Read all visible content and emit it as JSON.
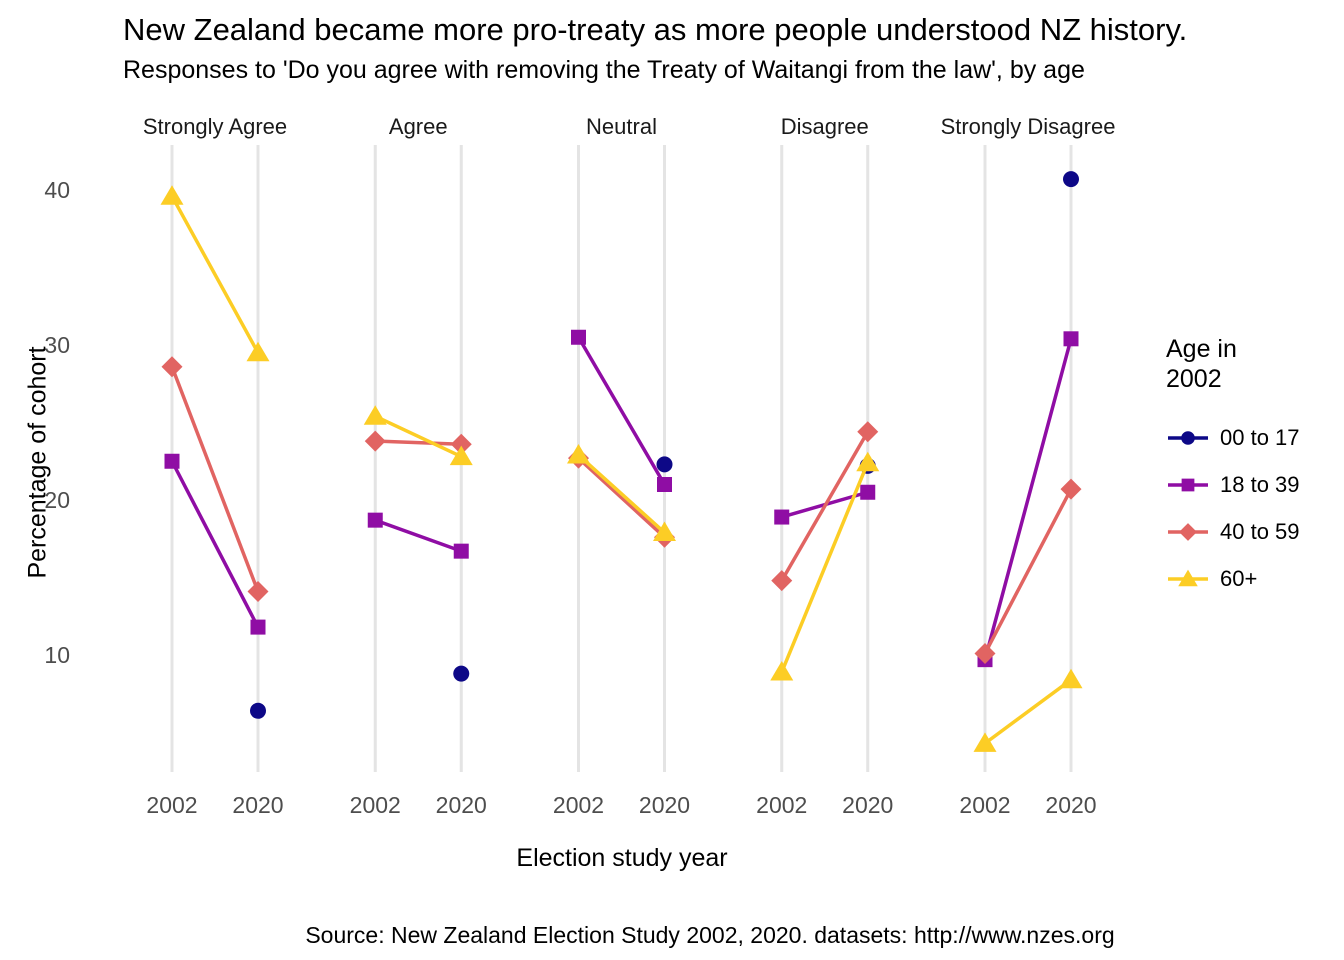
{
  "legend": {
    "title": "Age in 2002"
  },
  "chart_data": {
    "type": "line",
    "title": "New Zealand became more pro-treaty as more people understood NZ history.",
    "subtitle": "Responses to 'Do you agree with removing the Treaty of Waitangi from the law', by age",
    "caption": "Source: New Zealand Election Study 2002, 2020. datasets: http://www.nzes.org",
    "xlabel": "Election study year",
    "ylabel": "Percentage of cohort",
    "facets": [
      "Strongly Agree",
      "Agree",
      "Neutral",
      "Disagree",
      "Strongly Disagree"
    ],
    "x": [
      "2002",
      "2020"
    ],
    "yticks": [
      10,
      20,
      30,
      40
    ],
    "ylim": [
      2.5,
      43
    ],
    "grid": "vertical-major-only",
    "legend_position": "right",
    "legend_title": "Age in 2002",
    "series": [
      {
        "name": "00 to 17",
        "color": "#0d0887",
        "marker": "circle",
        "values": {
          "Strongly Agree": [
            null,
            6.4
          ],
          "Agree": [
            null,
            8.8
          ],
          "Neutral": [
            null,
            22.3
          ],
          "Disagree": [
            null,
            22.2
          ],
          "Strongly Disagree": [
            null,
            40.7
          ]
        }
      },
      {
        "name": "18 to 39",
        "color": "#8f0da4",
        "marker": "square",
        "values": {
          "Strongly Agree": [
            22.5,
            11.8
          ],
          "Agree": [
            18.7,
            16.7
          ],
          "Neutral": [
            30.5,
            21.0
          ],
          "Disagree": [
            18.9,
            20.5
          ],
          "Strongly Disagree": [
            9.7,
            30.4
          ]
        }
      },
      {
        "name": "40 to 59",
        "color": "#e16462",
        "marker": "diamond",
        "values": {
          "Strongly Agree": [
            28.6,
            14.1
          ],
          "Agree": [
            23.8,
            23.6
          ],
          "Neutral": [
            22.7,
            17.6
          ],
          "Disagree": [
            14.8,
            24.4
          ],
          "Strongly Disagree": [
            10.1,
            20.7
          ]
        }
      },
      {
        "name": "60+",
        "color": "#fccd25",
        "marker": "triangle",
        "values": {
          "Strongly Agree": [
            39.6,
            29.5
          ],
          "Agree": [
            25.4,
            22.8
          ],
          "Neutral": [
            22.9,
            17.9
          ],
          "Disagree": [
            8.9,
            22.4
          ],
          "Strongly Disagree": [
            4.3,
            8.4
          ]
        }
      }
    ]
  }
}
